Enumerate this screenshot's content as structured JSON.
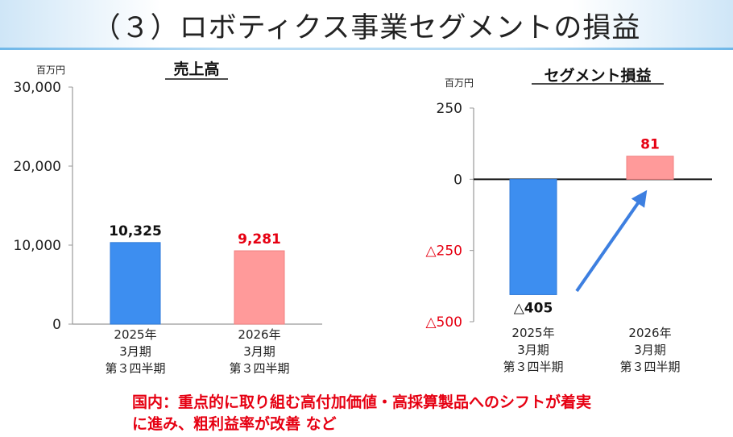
{
  "page_title": "（３）ロボティクス事業セグメントの損益",
  "colors": {
    "blue": "#3d8ef0",
    "pink": "#ff9a9a",
    "red": "#e60012",
    "arrow": "#3d7fe0"
  },
  "chart_data": [
    {
      "type": "bar",
      "title": "売上高",
      "unit_label": "百万円",
      "categories": [
        "2025年\n3月期\n第３四半期",
        "2026年\n3月期\n第３四半期"
      ],
      "values": [
        10325,
        9281
      ],
      "value_labels": [
        "10,325",
        "9,281"
      ],
      "ylim": [
        0,
        30000
      ],
      "yticks": [
        0,
        10000,
        20000,
        30000
      ],
      "ytick_labels": [
        "0",
        "10,000",
        "20,000",
        "30,000"
      ],
      "grid": false
    },
    {
      "type": "bar",
      "title": "セグメント損益",
      "unit_label": "百万円",
      "categories": [
        "2025年\n3月期\n第３四半期",
        "2026年\n3月期\n第３四半期"
      ],
      "values": [
        -405,
        81
      ],
      "value_labels": [
        "△405",
        "81"
      ],
      "ylim": [
        -500,
        250
      ],
      "yticks": [
        -500,
        -250,
        0,
        250
      ],
      "ytick_labels": [
        "△500",
        "△250",
        "0",
        "250"
      ],
      "grid": false,
      "annotation": "arrow from prior-year bar toward current-year bar"
    }
  ],
  "note_lines": [
    "国内：重点的に取り組む高付加価値・高採算製品へのシフトが着実",
    "に進み、粗利益率が改善 など"
  ]
}
